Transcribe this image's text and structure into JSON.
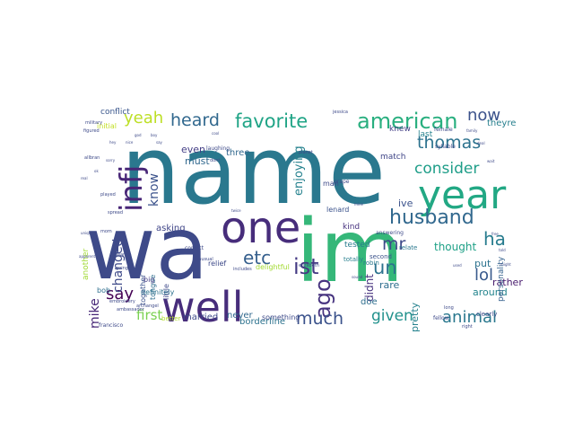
{
  "figure": {
    "type": "word_cloud",
    "colormap": "viridis",
    "background": "#ffffff"
  },
  "words": [
    {
      "text": "name",
      "color": "#2a788e"
    },
    {
      "text": "wa",
      "color": "#3e4a89"
    },
    {
      "text": "im",
      "color": "#35b779"
    },
    {
      "text": "well",
      "color": "#472d7b"
    },
    {
      "text": "one",
      "color": "#472d7b"
    },
    {
      "text": "year",
      "color": "#22a884"
    },
    {
      "text": "infj",
      "color": "#482677"
    },
    {
      "text": "american",
      "color": "#29af7f"
    },
    {
      "text": "husband",
      "color": "#31688e"
    },
    {
      "text": "favorite",
      "color": "#20a486"
    },
    {
      "text": "heard",
      "color": "#31688e"
    },
    {
      "text": "thomas",
      "color": "#2c728e"
    },
    {
      "text": "consider",
      "color": "#1f9e89"
    },
    {
      "text": "yeah",
      "color": "#bddf26"
    },
    {
      "text": "now",
      "color": "#3b528b"
    },
    {
      "text": "ist",
      "color": "#443983"
    },
    {
      "text": "etc",
      "color": "#355f8d"
    },
    {
      "text": "ago",
      "color": "#46337f"
    },
    {
      "text": "say",
      "color": "#440154"
    },
    {
      "text": "much",
      "color": "#3b528b"
    },
    {
      "text": "given",
      "color": "#21918c"
    },
    {
      "text": "animal",
      "color": "#2a788e"
    },
    {
      "text": "lol",
      "color": "#38598c"
    },
    {
      "text": "ha",
      "color": "#287c8e"
    },
    {
      "text": "un",
      "color": "#2c728e"
    },
    {
      "text": "mr",
      "color": "#3e4a89"
    },
    {
      "text": "first",
      "color": "#7ad151"
    },
    {
      "text": "mike",
      "color": "#482878"
    },
    {
      "text": "changed",
      "color": "#3e4a89"
    },
    {
      "text": "know",
      "color": "#3b528b"
    },
    {
      "text": "enjoying",
      "color": "#26828e"
    },
    {
      "text": "thought",
      "color": "#1fa187"
    },
    {
      "text": "didnt",
      "color": "#46327e"
    },
    {
      "text": "ive",
      "color": "#3b528b"
    },
    {
      "text": "put",
      "color": "#2c728e"
    },
    {
      "text": "rather",
      "color": "#481b6d"
    },
    {
      "text": "around",
      "color": "#25858e"
    },
    {
      "text": "even",
      "color": "#433e85"
    },
    {
      "text": "must",
      "color": "#31688e"
    },
    {
      "text": "pretty",
      "color": "#26828e"
    },
    {
      "text": "rare",
      "color": "#2e6e8e"
    },
    {
      "text": "doe",
      "color": "#2e6e8e"
    },
    {
      "text": "married",
      "color": "#3e4a89"
    },
    {
      "text": "borderline",
      "color": "#2c728e"
    },
    {
      "text": "never",
      "color": "#31688e"
    },
    {
      "text": "asking",
      "color": "#404688"
    },
    {
      "text": "three",
      "color": "#31688e"
    },
    {
      "text": "theyre",
      "color": "#277f8e"
    },
    {
      "text": "conflict",
      "color": "#39568c"
    },
    {
      "text": "personality",
      "color": "#34618d"
    },
    {
      "text": "match",
      "color": "#404688"
    },
    {
      "text": "knew",
      "color": "#433e85"
    },
    {
      "text": "last",
      "color": "#26828e"
    },
    {
      "text": "kind",
      "color": "#46327e"
    },
    {
      "text": "lenard",
      "color": "#3b528b"
    },
    {
      "text": "tested",
      "color": "#287c8e"
    },
    {
      "text": "another",
      "color": "#a2da37"
    },
    {
      "text": "together",
      "color": "#3b528b"
    },
    {
      "text": "tongue",
      "color": "#2e6e8e"
    },
    {
      "text": "little",
      "color": "#3e4a89"
    },
    {
      "text": "bob",
      "color": "#2e6e8e"
    },
    {
      "text": "big",
      "color": "#433e85"
    },
    {
      "text": "definitely",
      "color": "#2c728e"
    },
    {
      "text": "initial",
      "color": "#c2df23"
    },
    {
      "text": "man",
      "color": "#3e4a89"
    },
    {
      "text": "robin",
      "color": "#2a788e"
    },
    {
      "text": "totally",
      "color": "#277f8e"
    },
    {
      "text": "relief",
      "color": "#3e4a89"
    },
    {
      "text": "something",
      "color": "#3e4a89"
    },
    {
      "text": "second",
      "color": "#3b528b"
    },
    {
      "text": "delightful",
      "color": "#a5db36"
    },
    {
      "text": "better",
      "color": "#b2dd2d"
    },
    {
      "text": "relate",
      "color": "#2a788e"
    },
    {
      "text": "clearly",
      "color": "#3e4a89"
    },
    {
      "text": "francisco",
      "color": "#3e4a89"
    },
    {
      "text": "fellow",
      "color": "#3e4a89"
    },
    {
      "text": "female",
      "color": "#3e4a89"
    },
    {
      "text": "syllable",
      "color": "#3e4a89"
    },
    {
      "text": "answering",
      "color": "#3e4a89"
    },
    {
      "text": "ambassador",
      "color": "#3e4a89"
    },
    {
      "text": "laughing",
      "color": "#3e4a89"
    },
    {
      "text": "unusual",
      "color": "#3e4a89"
    },
    {
      "text": "correct",
      "color": "#3e4a89"
    },
    {
      "text": "grape",
      "color": "#3e4a89"
    },
    {
      "text": "military",
      "color": "#3e4a89"
    },
    {
      "text": "planet",
      "color": "#3e4a89"
    },
    {
      "text": "allbran",
      "color": "#3e4a89"
    },
    {
      "text": "includes",
      "color": "#3e4a89"
    },
    {
      "text": "embroidery",
      "color": "#3e4a89"
    },
    {
      "text": "elizabeth",
      "color": "#3e4a89"
    },
    {
      "text": "archangel",
      "color": "#3e4a89"
    },
    {
      "text": "jessica",
      "color": "#3e4a89"
    },
    {
      "text": "figured",
      "color": "#3e4a89"
    },
    {
      "text": "going",
      "color": "#3e4a89"
    },
    {
      "text": "mom",
      "color": "#3e4a89"
    },
    {
      "text": "spread",
      "color": "#3e4a89"
    },
    {
      "text": "dont",
      "color": "#3e4a89"
    },
    {
      "text": "right",
      "color": "#3e4a89"
    },
    {
      "text": "long",
      "color": "#3e4a89"
    },
    {
      "text": "wanna",
      "color": "#3e4a89"
    },
    {
      "text": "played",
      "color": "#3e4a89"
    },
    {
      "text": "unique",
      "color": "#3e4a89"
    },
    {
      "text": "twice",
      "color": "#3e4a89"
    },
    {
      "text": "mine",
      "color": "#3e4a89"
    },
    {
      "text": "sound",
      "color": "#3e4a89"
    },
    {
      "text": "apparently",
      "color": "#3e4a89"
    },
    {
      "text": "family",
      "color": "#3e4a89"
    },
    {
      "text": "deal",
      "color": "#3e4a89"
    },
    {
      "text": "wait",
      "color": "#3e4a89"
    },
    {
      "text": "used",
      "color": "#3e4a89"
    },
    {
      "text": "might",
      "color": "#3e4a89"
    },
    {
      "text": "told",
      "color": "#3e4a89"
    },
    {
      "text": "free",
      "color": "#3e4a89"
    },
    {
      "text": "real",
      "color": "#3e4a89"
    },
    {
      "text": "ok",
      "color": "#3e4a89"
    },
    {
      "text": "sorry",
      "color": "#3e4a89"
    },
    {
      "text": "hey",
      "color": "#3e4a89"
    },
    {
      "text": "nice",
      "color": "#3e4a89"
    },
    {
      "text": "god",
      "color": "#3e4a89"
    },
    {
      "text": "boy",
      "color": "#3e4a89"
    },
    {
      "text": "say",
      "color": "#3e4a89"
    },
    {
      "text": "cool",
      "color": "#3e4a89"
    }
  ]
}
